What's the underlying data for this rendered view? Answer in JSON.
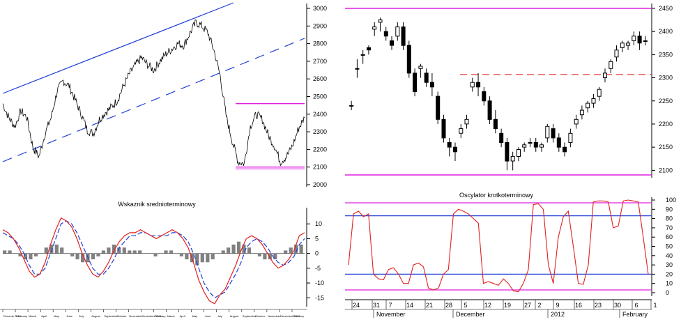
{
  "chart_data": [
    {
      "type": "line",
      "panel": "long-term price",
      "title": "",
      "ylim": [
        2000,
        3050
      ],
      "yticks": [
        2000,
        2100,
        2200,
        2300,
        2400,
        2500,
        2600,
        2700,
        2800,
        2900,
        3000
      ],
      "series": [
        {
          "values": [
            2460,
            2380,
            2330,
            2420,
            2380,
            2210,
            2160,
            2290,
            2380,
            2530,
            2590,
            2560,
            2480,
            2400,
            2310,
            2290,
            2370,
            2410,
            2440,
            2480,
            2560,
            2630,
            2680,
            2720,
            2680,
            2650,
            2700,
            2740,
            2770,
            2800,
            2790,
            2860,
            2920,
            2900,
            2860,
            2760,
            2620,
            2390,
            2250,
            2130,
            2120,
            2330,
            2400,
            2370,
            2280,
            2220,
            2130,
            2160,
            2220,
            2320,
            2380
          ]
        }
      ],
      "lines": [
        {
          "kind": "trend-upper",
          "color": "#1f3fd6",
          "style": "solid"
        },
        {
          "kind": "trend-lower",
          "color": "#1f3fd6",
          "style": "dashed"
        },
        {
          "kind": "resistance",
          "value": 2460,
          "color": "#e01ee0"
        },
        {
          "kind": "support",
          "value": 2100,
          "color": "#e01ee0"
        }
      ],
      "xticks": [
        "Decemb 2010",
        "February",
        "March",
        "April",
        "May",
        "June",
        "July",
        "August",
        "September",
        "October",
        "November",
        "December 2011",
        "February",
        "March",
        "April",
        "May",
        "June",
        "July",
        "August",
        "September",
        "October",
        "November",
        "December 2012",
        "February"
      ]
    },
    {
      "type": "bar",
      "panel": "medium-term indicator",
      "title": "Wskaznik srednioterminowy",
      "ylim": [
        -18,
        15
      ],
      "yticks": [
        -15,
        -10,
        -5,
        0,
        5,
        10
      ],
      "series": [
        {
          "name": "",
          "color": "#e02020",
          "values": [
            8,
            7,
            5,
            2,
            -2,
            -6,
            -8,
            -7,
            -3,
            3,
            8,
            12,
            11,
            9,
            5,
            0,
            -4,
            -7,
            -8,
            -6,
            -3,
            1,
            4,
            6,
            7,
            7,
            8,
            7,
            6,
            5,
            6,
            7,
            8,
            7,
            5,
            2,
            -3,
            -9,
            -13,
            -16,
            -17,
            -14,
            -12,
            -8,
            -4,
            1,
            5,
            6,
            5,
            3,
            0,
            -3,
            -5,
            -4,
            -2,
            1,
            6,
            7
          ]
        },
        {
          "name": "",
          "color": "#1f3fd6",
          "values": [
            7,
            6,
            5,
            3,
            0,
            -4,
            -7,
            -7,
            -5,
            0,
            5,
            10,
            11,
            10,
            7,
            3,
            -1,
            -5,
            -7,
            -7,
            -5,
            -2,
            2,
            4,
            6,
            6,
            7,
            7,
            6,
            6,
            6,
            6,
            7,
            7,
            6,
            4,
            0,
            -5,
            -10,
            -13,
            -15,
            -14,
            -13,
            -10,
            -7,
            -3,
            2,
            4,
            5,
            4,
            2,
            -1,
            -3,
            -4,
            -3,
            -1,
            3,
            5
          ]
        }
      ],
      "histogram": [
        1,
        1,
        0,
        -1,
        -2,
        -2,
        -1,
        0,
        2,
        3,
        3,
        2,
        0,
        -1,
        -2,
        -3,
        -3,
        -2,
        -1,
        1,
        2,
        3,
        2,
        2,
        1,
        1,
        1,
        0,
        0,
        -1,
        0,
        1,
        1,
        0,
        -1,
        -2,
        -3,
        -4,
        -3,
        -3,
        -2,
        0,
        1,
        2,
        3,
        4,
        3,
        2,
        0,
        -1,
        -2,
        -2,
        -2,
        0,
        1,
        2,
        3,
        3
      ],
      "histogram_color": "#808080"
    },
    {
      "type": "candlestick",
      "panel": "short-term price",
      "title": "",
      "ylim": [
        2090,
        2455
      ],
      "yticks": [
        2100,
        2150,
        2200,
        2250,
        2300,
        2350,
        2400,
        2450
      ],
      "candles": [
        {
          "o": 2240,
          "h": 2250,
          "l": 2230,
          "c": 2240
        },
        {
          "o": 2320,
          "h": 2340,
          "l": 2300,
          "c": 2320
        },
        {
          "o": 2350,
          "h": 2360,
          "l": 2330,
          "c": 2350
        },
        {
          "o": 2365,
          "h": 2370,
          "l": 2350,
          "c": 2360
        },
        {
          "o": 2405,
          "h": 2420,
          "l": 2390,
          "c": 2410
        },
        {
          "o": 2420,
          "h": 2430,
          "l": 2400,
          "c": 2425
        },
        {
          "o": 2400,
          "h": 2410,
          "l": 2380,
          "c": 2390
        },
        {
          "o": 2380,
          "h": 2390,
          "l": 2360,
          "c": 2370
        },
        {
          "o": 2390,
          "h": 2420,
          "l": 2380,
          "c": 2410
        },
        {
          "o": 2410,
          "h": 2420,
          "l": 2360,
          "c": 2370
        },
        {
          "o": 2370,
          "h": 2380,
          "l": 2300,
          "c": 2310
        },
        {
          "o": 2310,
          "h": 2320,
          "l": 2260,
          "c": 2270
        },
        {
          "o": 2320,
          "h": 2330,
          "l": 2300,
          "c": 2325
        },
        {
          "o": 2310,
          "h": 2320,
          "l": 2280,
          "c": 2290
        },
        {
          "o": 2290,
          "h": 2310,
          "l": 2260,
          "c": 2280
        },
        {
          "o": 2260,
          "h": 2270,
          "l": 2200,
          "c": 2210
        },
        {
          "o": 2210,
          "h": 2220,
          "l": 2160,
          "c": 2170
        },
        {
          "o": 2160,
          "h": 2170,
          "l": 2130,
          "c": 2150
        },
        {
          "o": 2150,
          "h": 2160,
          "l": 2120,
          "c": 2140
        },
        {
          "o": 2180,
          "h": 2200,
          "l": 2170,
          "c": 2190
        },
        {
          "o": 2200,
          "h": 2220,
          "l": 2190,
          "c": 2210
        },
        {
          "o": 2280,
          "h": 2300,
          "l": 2270,
          "c": 2290
        },
        {
          "o": 2290,
          "h": 2310,
          "l": 2260,
          "c": 2280
        },
        {
          "o": 2270,
          "h": 2280,
          "l": 2240,
          "c": 2250
        },
        {
          "o": 2250,
          "h": 2260,
          "l": 2200,
          "c": 2210
        },
        {
          "o": 2210,
          "h": 2230,
          "l": 2180,
          "c": 2190
        },
        {
          "o": 2180,
          "h": 2190,
          "l": 2150,
          "c": 2160
        },
        {
          "o": 2160,
          "h": 2170,
          "l": 2100,
          "c": 2120
        },
        {
          "o": 2120,
          "h": 2140,
          "l": 2100,
          "c": 2130
        },
        {
          "o": 2130,
          "h": 2150,
          "l": 2120,
          "c": 2145
        },
        {
          "o": 2150,
          "h": 2160,
          "l": 2140,
          "c": 2155
        },
        {
          "o": 2160,
          "h": 2170,
          "l": 2150,
          "c": 2160
        },
        {
          "o": 2160,
          "h": 2170,
          "l": 2140,
          "c": 2150
        },
        {
          "o": 2150,
          "h": 2160,
          "l": 2140,
          "c": 2155
        },
        {
          "o": 2170,
          "h": 2200,
          "l": 2160,
          "c": 2195
        },
        {
          "o": 2190,
          "h": 2200,
          "l": 2160,
          "c": 2170
        },
        {
          "o": 2170,
          "h": 2180,
          "l": 2140,
          "c": 2150
        },
        {
          "o": 2150,
          "h": 2160,
          "l": 2130,
          "c": 2140
        },
        {
          "o": 2160,
          "h": 2190,
          "l": 2150,
          "c": 2180
        },
        {
          "o": 2200,
          "h": 2220,
          "l": 2190,
          "c": 2210
        },
        {
          "o": 2220,
          "h": 2240,
          "l": 2210,
          "c": 2230
        },
        {
          "o": 2235,
          "h": 2250,
          "l": 2225,
          "c": 2245
        },
        {
          "o": 2245,
          "h": 2265,
          "l": 2235,
          "c": 2255
        },
        {
          "o": 2260,
          "h": 2280,
          "l": 2250,
          "c": 2275
        },
        {
          "o": 2300,
          "h": 2320,
          "l": 2290,
          "c": 2310
        },
        {
          "o": 2320,
          "h": 2340,
          "l": 2310,
          "c": 2335
        },
        {
          "o": 2345,
          "h": 2370,
          "l": 2335,
          "c": 2360
        },
        {
          "o": 2365,
          "h": 2380,
          "l": 2355,
          "c": 2375
        },
        {
          "o": 2370,
          "h": 2380,
          "l": 2360,
          "c": 2375
        },
        {
          "o": 2380,
          "h": 2400,
          "l": 2370,
          "c": 2390
        },
        {
          "o": 2390,
          "h": 2400,
          "l": 2360,
          "c": 2375
        },
        {
          "o": 2380,
          "h": 2390,
          "l": 2370,
          "c": 2380
        }
      ],
      "lines": [
        {
          "kind": "resistance",
          "value": 2450,
          "color": "#e01ee0"
        },
        {
          "kind": "resistance-dashed",
          "value": 2307,
          "color": "#e02020"
        },
        {
          "kind": "support",
          "value": 2090,
          "color": "#e01ee0"
        }
      ]
    },
    {
      "type": "line",
      "panel": "short-term oscillator",
      "title": "Oscylator krotkoterminowy",
      "ylim": [
        0,
        105
      ],
      "yticks": [
        0,
        10,
        20,
        30,
        40,
        50,
        60,
        70,
        80,
        90,
        100
      ],
      "series": [
        {
          "name": "",
          "color": "#e02020",
          "values": [
            30,
            85,
            88,
            82,
            85,
            20,
            15,
            14,
            25,
            27,
            20,
            10,
            10,
            30,
            32,
            28,
            5,
            3,
            5,
            20,
            25,
            85,
            90,
            88,
            85,
            80,
            75,
            10,
            12,
            10,
            8,
            15,
            10,
            2,
            1,
            10,
            25,
            95,
            96,
            90,
            30,
            10,
            60,
            82,
            88,
            50,
            10,
            9,
            30,
            98,
            99,
            99,
            98,
            70,
            72,
            99,
            100,
            99,
            98,
            60,
            20
          ]
        }
      ],
      "levels": [
        {
          "value": 97,
          "color": "#e01ee0"
        },
        {
          "value": 83,
          "color": "#1f3fd6"
        },
        {
          "value": 20,
          "color": "#1f3fd6"
        },
        {
          "value": 3,
          "color": "#e01ee0"
        }
      ],
      "xticks": [
        "24",
        "31",
        "7",
        "14",
        "21",
        "28",
        "5",
        "12",
        "19",
        "27",
        "2",
        "9",
        "16",
        "23",
        "30",
        "6",
        "1"
      ],
      "months": [
        "November",
        "December",
        "2012",
        "February"
      ]
    }
  ]
}
